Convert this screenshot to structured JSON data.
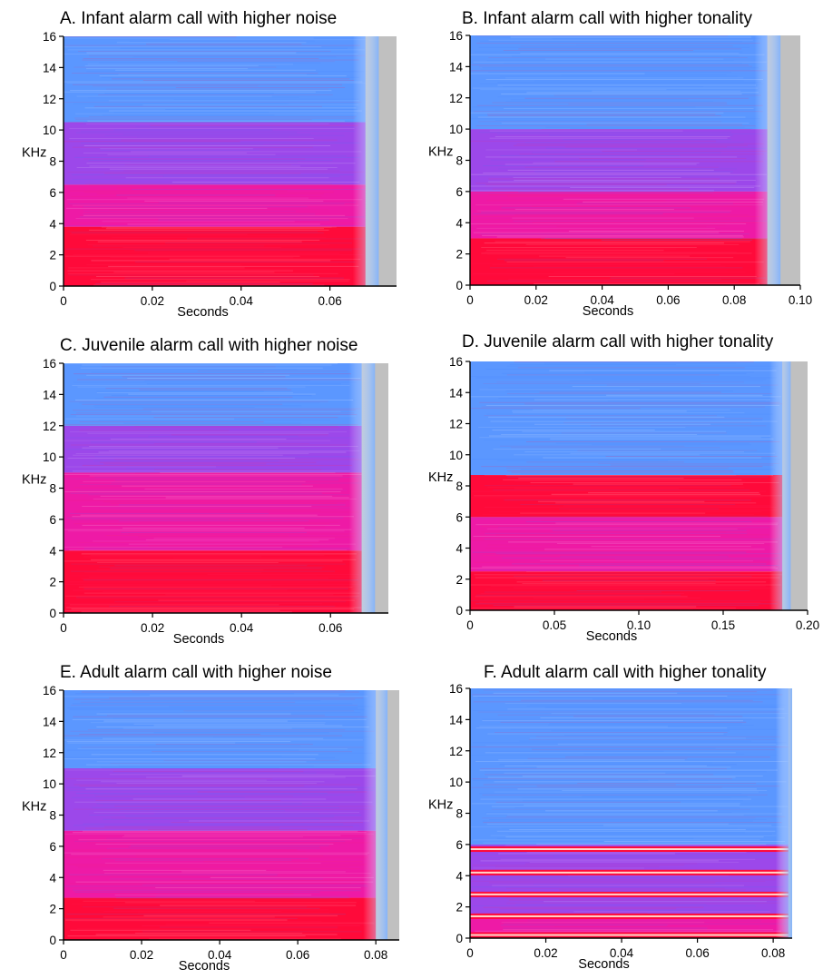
{
  "chart_data": [
    {
      "panel": "A",
      "type": "heatmap",
      "title": "A. Infant alarm call with higher noise",
      "xlabel": "Seconds",
      "ylabel": "KHz",
      "xlim": [
        0,
        0.075
      ],
      "ylim": [
        0,
        16
      ],
      "xticks": [
        0,
        0.02,
        0.04,
        0.06
      ],
      "xtick_labels": [
        "0",
        "0.02",
        "0.04",
        "0.06"
      ],
      "yticks": [
        0,
        2,
        4,
        6,
        8,
        10,
        12,
        14,
        16
      ],
      "signal_end": 0.071,
      "bands": [
        {
          "khz": [
            0,
            3.8
          ],
          "t": [
            0,
            0.068
          ],
          "level": "high"
        },
        {
          "khz": [
            3.8,
            6.5
          ],
          "t": [
            0,
            0.068
          ],
          "level": "medium"
        },
        {
          "khz": [
            6.5,
            10.5
          ],
          "t": [
            0,
            0.068
          ],
          "level": "low"
        },
        {
          "khz": [
            10.5,
            16
          ],
          "t": [
            0,
            0.068
          ],
          "level": "faint"
        }
      ]
    },
    {
      "panel": "B",
      "type": "heatmap",
      "title": "B. Infant alarm call with higher tonality",
      "xlabel": "Seconds",
      "ylabel": "KHz",
      "xlim": [
        0,
        0.1
      ],
      "ylim": [
        0,
        16
      ],
      "xticks": [
        0,
        0.02,
        0.04,
        0.06,
        0.08,
        0.1
      ],
      "xtick_labels": [
        "0",
        "0.02",
        "0.04",
        "0.06",
        "0.08",
        "0.10"
      ],
      "yticks": [
        0,
        2,
        4,
        6,
        8,
        10,
        12,
        14,
        16
      ],
      "signal_end": 0.094,
      "bands": [
        {
          "khz": [
            0,
            3
          ],
          "t": [
            0,
            0.09
          ],
          "level": "high"
        },
        {
          "khz": [
            3,
            6
          ],
          "t": [
            0,
            0.09
          ],
          "level": "medium"
        },
        {
          "khz": [
            6,
            10
          ],
          "t": [
            0,
            0.09
          ],
          "level": "low"
        },
        {
          "khz": [
            10,
            16
          ],
          "t": [
            0,
            0.09
          ],
          "level": "faint"
        }
      ]
    },
    {
      "panel": "C",
      "type": "heatmap",
      "title": "C. Juvenile alarm call with higher noise",
      "xlabel": "Seconds",
      "ylabel": "KHz",
      "xlim": [
        0,
        0.073
      ],
      "ylim": [
        0,
        16
      ],
      "xticks": [
        0,
        0.02,
        0.04,
        0.06
      ],
      "xtick_labels": [
        "0",
        "0.02",
        "0.04",
        "0.06"
      ],
      "yticks": [
        0,
        2,
        4,
        6,
        8,
        10,
        12,
        14,
        16
      ],
      "signal_end": 0.07,
      "bands": [
        {
          "khz": [
            0,
            4
          ],
          "t": [
            0,
            0.067
          ],
          "level": "high"
        },
        {
          "khz": [
            4,
            9
          ],
          "t": [
            0,
            0.067
          ],
          "level": "medium"
        },
        {
          "khz": [
            9,
            12
          ],
          "t": [
            0,
            0.067
          ],
          "level": "low"
        },
        {
          "khz": [
            12,
            16
          ],
          "t": [
            0,
            0.067
          ],
          "level": "faint"
        }
      ]
    },
    {
      "panel": "D",
      "type": "heatmap",
      "title": "D. Juvenile alarm call with higher tonality",
      "xlabel": "Seconds",
      "ylabel": "KHz",
      "xlim": [
        0,
        0.2
      ],
      "ylim": [
        0,
        16
      ],
      "xticks": [
        0,
        0.05,
        0.1,
        0.15,
        0.2
      ],
      "xtick_labels": [
        "0",
        "0.05",
        "0.10",
        "0.15",
        "0.20"
      ],
      "yticks": [
        0,
        2,
        4,
        6,
        8,
        10,
        12,
        14,
        16
      ],
      "signal_end": 0.19,
      "bands": [
        {
          "khz": [
            0,
            2.5
          ],
          "t": [
            0,
            0.185
          ],
          "level": "high"
        },
        {
          "khz": [
            2.5,
            6
          ],
          "t": [
            0,
            0.185
          ],
          "level": "medium"
        },
        {
          "khz": [
            6,
            8.7
          ],
          "t": [
            0,
            0.185
          ],
          "level": "high"
        },
        {
          "khz": [
            8.7,
            16
          ],
          "t": [
            0,
            0.185
          ],
          "level": "faint"
        }
      ]
    },
    {
      "panel": "E",
      "type": "heatmap",
      "title": "E. Adult alarm call with higher noise",
      "xlabel": "Seconds",
      "ylabel": "KHz",
      "xlim": [
        0,
        0.086
      ],
      "ylim": [
        0,
        16
      ],
      "xticks": [
        0,
        0.02,
        0.04,
        0.06,
        0.08
      ],
      "xtick_labels": [
        "0",
        "0.02",
        "0.04",
        "0.06",
        "0.08"
      ],
      "yticks": [
        0,
        2,
        4,
        6,
        8,
        10,
        12,
        14,
        16
      ],
      "signal_end": 0.083,
      "bands": [
        {
          "khz": [
            0,
            2.7
          ],
          "t": [
            0,
            0.08
          ],
          "level": "high"
        },
        {
          "khz": [
            2.7,
            7
          ],
          "t": [
            0,
            0.08
          ],
          "level": "medium"
        },
        {
          "khz": [
            7,
            11
          ],
          "t": [
            0,
            0.08
          ],
          "level": "low"
        },
        {
          "khz": [
            11,
            16
          ],
          "t": [
            0,
            0.08
          ],
          "level": "faint"
        }
      ]
    },
    {
      "panel": "F",
      "type": "heatmap",
      "title": "F. Adult alarm call with higher tonality",
      "xlabel": "Seconds",
      "ylabel": "KHz",
      "xlim": [
        0,
        0.085
      ],
      "ylim": [
        0,
        16
      ],
      "xticks": [
        0,
        0.02,
        0.04,
        0.06,
        0.08
      ],
      "xtick_labels": [
        "0",
        "0.02",
        "0.04",
        "0.06",
        "0.08"
      ],
      "yticks": [
        0,
        2,
        4,
        6,
        8,
        10,
        12,
        14,
        16
      ],
      "signal_end": 0.085,
      "bands": [
        {
          "khz": [
            0,
            1.5
          ],
          "t": [
            0,
            0.084
          ],
          "level": "medium"
        },
        {
          "khz": [
            1.5,
            6
          ],
          "t": [
            0,
            0.084
          ],
          "level": "low"
        },
        {
          "khz": [
            6,
            16
          ],
          "t": [
            0,
            0.084
          ],
          "level": "faint"
        }
      ],
      "harmonics_khz": [
        0.2,
        1.4,
        2.8,
        4.2,
        5.7
      ]
    }
  ],
  "colors": {
    "high": "#ff0a3a",
    "medium": "#ee1aa6",
    "low": "#9c48ea",
    "faint": "#5b97ff",
    "peak": "#fffbe6",
    "background_grey": "#c0c0c0",
    "axis": "#000000"
  }
}
